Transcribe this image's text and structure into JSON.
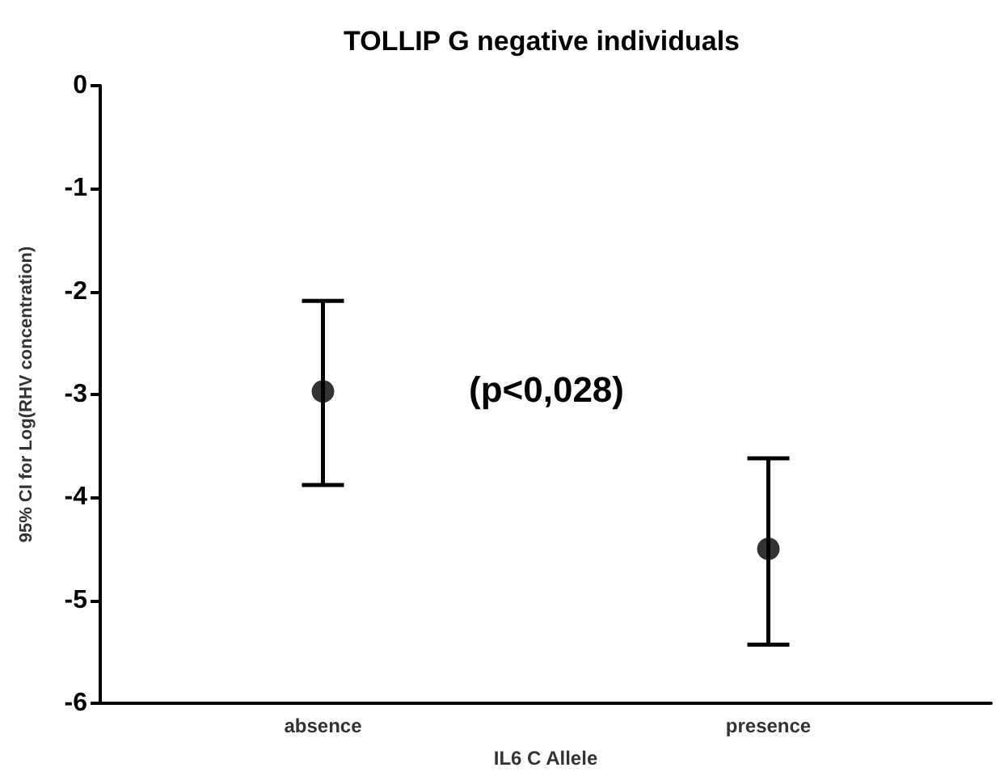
{
  "chart_data": {
    "type": "scatter",
    "title": "TOLLIP G negative individuals",
    "xlabel": "IL6 C Allele",
    "ylabel": "95% CI for Log(RHV concentration)",
    "categories": [
      "absence",
      "presence"
    ],
    "values": [
      -2.97,
      -4.5
    ],
    "errors": [
      [
        -3.88,
        -2.09
      ],
      [
        -5.43,
        -3.62
      ]
    ],
    "color": "#000000",
    "marker": "circle",
    "grid": false,
    "ylim": [
      -6,
      0
    ],
    "yticks": [
      -6,
      -5,
      -4,
      -3,
      -2,
      -1,
      0
    ],
    "annotations": [
      "(p<0,028)"
    ]
  }
}
